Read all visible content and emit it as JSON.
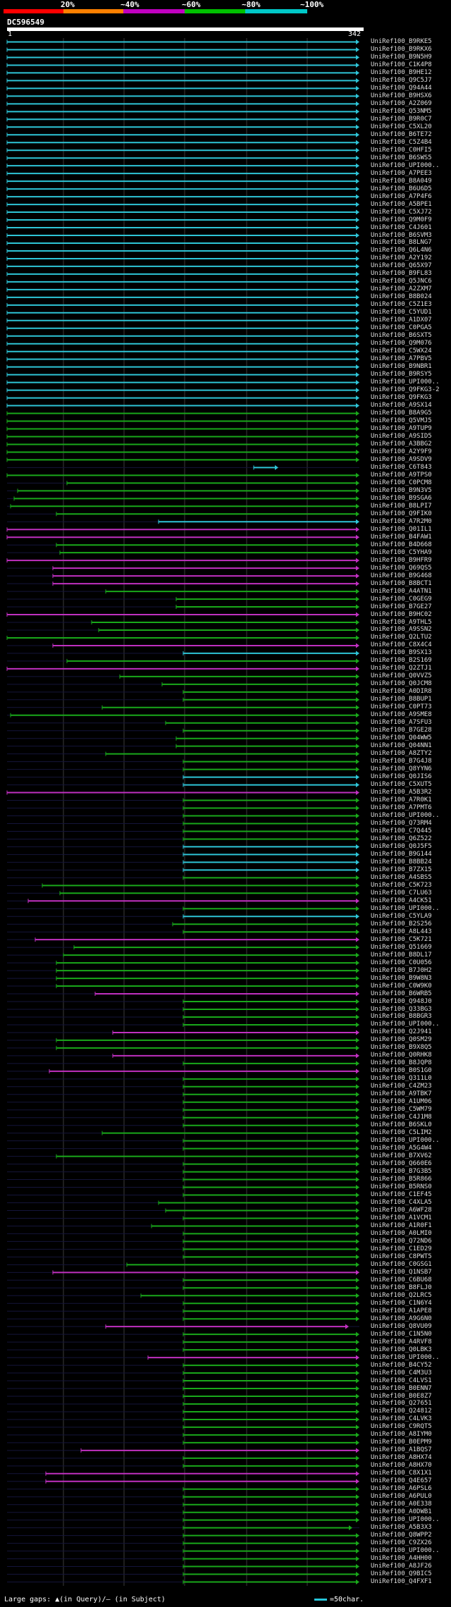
{
  "legend": [
    {
      "label": "20%",
      "color": "#ff0000"
    },
    {
      "label": "~40%",
      "color": "#ff8000"
    },
    {
      "label": "~60%",
      "color": "#c000c0"
    },
    {
      "label": "~80%",
      "color": "#00c000"
    },
    {
      "label": "~100%",
      "color": "#00c8c8"
    }
  ],
  "query": {
    "name": "DC596549",
    "start": "1",
    "end": "342"
  },
  "footer": "Large gaps: ▲(in Query)/— (in Subject)",
  "scale_label": "=50char.",
  "hits": [
    {
      "label": "UniRef100_B9RKE5",
      "c": "cyan",
      "s": 0,
      "e": 1
    },
    {
      "label": "UniRef100_B9RKX6",
      "c": "cyan",
      "s": 0,
      "e": 1
    },
    {
      "label": "UniRef100_B9N5H9",
      "c": "cyan",
      "s": 0,
      "e": 1
    },
    {
      "label": "UniRef100_C1K4P8",
      "c": "cyan",
      "s": 0,
      "e": 1
    },
    {
      "label": "UniRef100_B9HE12",
      "c": "cyan",
      "s": 0,
      "e": 1
    },
    {
      "label": "UniRef100_Q9C5J7",
      "c": "cyan",
      "s": 0,
      "e": 1
    },
    {
      "label": "UniRef100_Q94A44",
      "c": "cyan",
      "s": 0,
      "e": 1
    },
    {
      "label": "UniRef100_B9HSX6",
      "c": "cyan",
      "s": 0,
      "e": 1
    },
    {
      "label": "UniRef100_A2Z069",
      "c": "cyan",
      "s": 0,
      "e": 1
    },
    {
      "label": "UniRef100_Q53NM5",
      "c": "cyan",
      "s": 0,
      "e": 1
    },
    {
      "label": "UniRef100_B9R0C7",
      "c": "cyan",
      "s": 0,
      "e": 1
    },
    {
      "label": "UniRef100_C5XL20",
      "c": "cyan",
      "s": 0,
      "e": 1
    },
    {
      "label": "UniRef100_B6TE72",
      "c": "cyan",
      "s": 0,
      "e": 1
    },
    {
      "label": "UniRef100_C5Z4B4",
      "c": "cyan",
      "s": 0,
      "e": 1
    },
    {
      "label": "UniRef100_C0HFI5",
      "c": "cyan",
      "s": 0,
      "e": 1
    },
    {
      "label": "UniRef100_B6SWS5",
      "c": "cyan",
      "s": 0,
      "e": 1
    },
    {
      "label": "UniRef100_UPI000..",
      "c": "cyan",
      "s": 0,
      "e": 1
    },
    {
      "label": "UniRef100_A7PEE3",
      "c": "cyan",
      "s": 0,
      "e": 1
    },
    {
      "label": "UniRef100_B8A049",
      "c": "cyan",
      "s": 0,
      "e": 1
    },
    {
      "label": "UniRef100_B6U6D5",
      "c": "cyan",
      "s": 0,
      "e": 1
    },
    {
      "label": "UniRef100_A7P4F6",
      "c": "cyan",
      "s": 0,
      "e": 1
    },
    {
      "label": "UniRef100_A5BPE1",
      "c": "cyan",
      "s": 0,
      "e": 1
    },
    {
      "label": "UniRef100_C5XJ72",
      "c": "cyan",
      "s": 0,
      "e": 1
    },
    {
      "label": "UniRef100_Q9M0F9",
      "c": "cyan",
      "s": 0,
      "e": 1
    },
    {
      "label": "UniRef100_C4J601",
      "c": "cyan",
      "s": 0,
      "e": 1
    },
    {
      "label": "UniRef100_B6SVM3",
      "c": "cyan",
      "s": 0,
      "e": 1
    },
    {
      "label": "UniRef100_B8LNG7",
      "c": "cyan",
      "s": 0,
      "e": 1
    },
    {
      "label": "UniRef100_Q6L4N6",
      "c": "cyan",
      "s": 0,
      "e": 1
    },
    {
      "label": "UniRef100_A2Y192",
      "c": "cyan",
      "s": 0,
      "e": 1
    },
    {
      "label": "UniRef100_Q65X97",
      "c": "cyan",
      "s": 0,
      "e": 1
    },
    {
      "label": "UniRef100_B9FL83",
      "c": "cyan",
      "s": 0,
      "e": 1
    },
    {
      "label": "UniRef100_Q5JNC6",
      "c": "cyan",
      "s": 0,
      "e": 1
    },
    {
      "label": "UniRef100_A2ZXM7",
      "c": "cyan",
      "s": 0,
      "e": 1
    },
    {
      "label": "UniRef100_B8B024",
      "c": "cyan",
      "s": 0,
      "e": 1
    },
    {
      "label": "UniRef100_C5Z1E3",
      "c": "cyan",
      "s": 0,
      "e": 1
    },
    {
      "label": "UniRef100_C5YUD1",
      "c": "cyan",
      "s": 0,
      "e": 1
    },
    {
      "label": "UniRef100_A1DX07",
      "c": "cyan",
      "s": 0,
      "e": 1
    },
    {
      "label": "UniRef100_C0PGA5",
      "c": "cyan",
      "s": 0,
      "e": 1
    },
    {
      "label": "UniRef100_B6SXT5",
      "c": "cyan",
      "s": 0,
      "e": 1
    },
    {
      "label": "UniRef100_Q9M076",
      "c": "cyan",
      "s": 0,
      "e": 1
    },
    {
      "label": "UniRef100_C5WX24",
      "c": "cyan",
      "s": 0,
      "e": 1
    },
    {
      "label": "UniRef100_A7PBV5",
      "c": "cyan",
      "s": 0,
      "e": 1
    },
    {
      "label": "UniRef100_B9NBR1",
      "c": "cyan",
      "s": 0,
      "e": 1
    },
    {
      "label": "UniRef100_B9RSY5",
      "c": "cyan",
      "s": 0,
      "e": 1
    },
    {
      "label": "UniRef100_UPI000..",
      "c": "cyan",
      "s": 0,
      "e": 1
    },
    {
      "label": "UniRef100_Q9FKG3-2",
      "c": "cyan",
      "s": 0,
      "e": 1
    },
    {
      "label": "UniRef100_Q9FKG3",
      "c": "cyan",
      "s": 0,
      "e": 1
    },
    {
      "label": "UniRef100_A9SX14",
      "c": "cyan",
      "s": 0,
      "e": 1
    },
    {
      "label": "UniRef100_B8A9G5",
      "c": "green",
      "s": 0,
      "e": 1
    },
    {
      "label": "UniRef100_Q5VMJ5",
      "c": "green",
      "s": 0,
      "e": 1
    },
    {
      "label": "UniRef100_A9TUP9",
      "c": "green",
      "s": 0,
      "e": 1
    },
    {
      "label": "UniRef100_A9SID5",
      "c": "green",
      "s": 0,
      "e": 1
    },
    {
      "label": "UniRef100_A3BBG2",
      "c": "green",
      "s": 0,
      "e": 1
    },
    {
      "label": "UniRef100_A2Y9F9",
      "c": "green",
      "s": 0,
      "e": 1
    },
    {
      "label": "UniRef100_A9SDV9",
      "c": "green",
      "s": 0,
      "e": 1
    },
    {
      "label": "UniRef100_C6T843",
      "c": "cyan",
      "s": 0.7,
      "e": 0.77
    },
    {
      "label": "UniRef100_A9TPS0",
      "c": "green",
      "s": 0,
      "e": 1
    },
    {
      "label": "UniRef100_C0PCM8",
      "c": "green",
      "s": 0.17,
      "e": 1
    },
    {
      "label": "UniRef100_B9N3V5",
      "c": "green",
      "s": 0.03,
      "e": 1
    },
    {
      "label": "UniRef100_B9SGA6",
      "c": "green",
      "s": 0.02,
      "e": 1
    },
    {
      "label": "UniRef100_B8LPI7",
      "c": "green",
      "s": 0.01,
      "e": 1
    },
    {
      "label": "UniRef100_Q9FIK0",
      "c": "green",
      "s": 0.14,
      "e": 1
    },
    {
      "label": "UniRef100_A7R2M0",
      "c": "cyan",
      "s": 0.43,
      "e": 1
    },
    {
      "label": "UniRef100_Q01IL1",
      "c": "magenta",
      "s": 0,
      "e": 1
    },
    {
      "label": "UniRef100_B4FAW1",
      "c": "magenta",
      "s": 0,
      "e": 1
    },
    {
      "label": "UniRef100_B4D668",
      "c": "green",
      "s": 0.14,
      "e": 1
    },
    {
      "label": "UniRef100_C5YHA9",
      "c": "green",
      "s": 0.15,
      "e": 1
    },
    {
      "label": "UniRef100_B9HFR9",
      "c": "magenta",
      "s": 0,
      "e": 1
    },
    {
      "label": "UniRef100_Q69QS5",
      "c": "magenta",
      "s": 0.13,
      "e": 1
    },
    {
      "label": "UniRef100_B9G468",
      "c": "magenta",
      "s": 0.13,
      "e": 1
    },
    {
      "label": "UniRef100_B8BCT1",
      "c": "magenta",
      "s": 0.13,
      "e": 1
    },
    {
      "label": "UniRef100_A4ATN1",
      "c": "green",
      "s": 0.28,
      "e": 1
    },
    {
      "label": "UniRef100_C0GEG9",
      "c": "green",
      "s": 0.48,
      "e": 1
    },
    {
      "label": "UniRef100_B7GE27",
      "c": "green",
      "s": 0.48,
      "e": 1
    },
    {
      "label": "UniRef100_B9HC02",
      "c": "magenta",
      "s": 0,
      "e": 1
    },
    {
      "label": "UniRef100_A9THL5",
      "c": "green",
      "s": 0.24,
      "e": 1
    },
    {
      "label": "UniRef100_A9SSN2",
      "c": "green",
      "s": 0.26,
      "e": 1
    },
    {
      "label": "UniRef100_Q2LTU2",
      "c": "green",
      "s": 0,
      "e": 1
    },
    {
      "label": "UniRef100_C8X4C4",
      "c": "magenta",
      "s": 0.13,
      "e": 1
    },
    {
      "label": "UniRef100_B9SX13",
      "c": "cyan",
      "s": 0.5,
      "e": 1
    },
    {
      "label": "UniRef100_B2S169",
      "c": "green",
      "s": 0.17,
      "e": 1
    },
    {
      "label": "UniRef100_Q2ZTJ1",
      "c": "magenta",
      "s": 0,
      "e": 1
    },
    {
      "label": "UniRef100_Q0VVZ5",
      "c": "green",
      "s": 0.32,
      "e": 1
    },
    {
      "label": "UniRef100_Q0JCM8",
      "c": "green",
      "s": 0.44,
      "e": 1
    },
    {
      "label": "UniRef100_A0DIR8",
      "c": "green",
      "s": 0.5,
      "e": 1
    },
    {
      "label": "UniRef100_B8BUP1",
      "c": "green",
      "s": 0.5,
      "e": 1
    },
    {
      "label": "UniRef100_C0PT73",
      "c": "green",
      "s": 0.27,
      "e": 1
    },
    {
      "label": "UniRef100_A9SME8",
      "c": "green",
      "s": 0.01,
      "e": 1
    },
    {
      "label": "UniRef100_A7SFU3",
      "c": "green",
      "s": 0.45,
      "e": 1
    },
    {
      "label": "UniRef100_B7GE28",
      "c": "green",
      "s": 0.5,
      "e": 1
    },
    {
      "label": "UniRef100_Q04WW5",
      "c": "green",
      "s": 0.48,
      "e": 1
    },
    {
      "label": "UniRef100_Q04NN1",
      "c": "green",
      "s": 0.48,
      "e": 1
    },
    {
      "label": "UniRef100_A8ZTY2",
      "c": "green",
      "s": 0.28,
      "e": 1
    },
    {
      "label": "UniRef100_B7G4J8",
      "c": "green",
      "s": 0.5,
      "e": 1
    },
    {
      "label": "UniRef100_Q8YYN6",
      "c": "green",
      "s": 0.5,
      "e": 1
    },
    {
      "label": "UniRef100_Q0JIS6",
      "c": "cyan",
      "s": 0.5,
      "e": 1
    },
    {
      "label": "UniRef100_C5XUT5",
      "c": "cyan",
      "s": 0.5,
      "e": 1
    },
    {
      "label": "UniRef100_A5B3R2",
      "c": "magenta",
      "s": 0,
      "e": 1
    },
    {
      "label": "UniRef100_A7R0K1",
      "c": "green",
      "s": 0.5,
      "e": 1
    },
    {
      "label": "UniRef100_A7PMT6",
      "c": "green",
      "s": 0.5,
      "e": 1
    },
    {
      "label": "UniRef100_UPI000..",
      "c": "green",
      "s": 0.5,
      "e": 1
    },
    {
      "label": "UniRef100_Q73RM4",
      "c": "green",
      "s": 0.5,
      "e": 1
    },
    {
      "label": "UniRef100_C7Q445",
      "c": "green",
      "s": 0.5,
      "e": 1
    },
    {
      "label": "UniRef100_Q6Z522",
      "c": "green",
      "s": 0.5,
      "e": 1
    },
    {
      "label": "UniRef100_Q0J5F5",
      "c": "cyan",
      "s": 0.5,
      "e": 1
    },
    {
      "label": "UniRef100_B9G144",
      "c": "cyan",
      "s": 0.5,
      "e": 1
    },
    {
      "label": "UniRef100_B8BB24",
      "c": "cyan",
      "s": 0.5,
      "e": 1
    },
    {
      "label": "UniRef100_B7ZX15",
      "c": "cyan",
      "s": 0.5,
      "e": 1
    },
    {
      "label": "UniRef100_A4SBS5",
      "c": "green",
      "s": 0.5,
      "e": 1
    },
    {
      "label": "UniRef100_C5K723",
      "c": "green",
      "s": 0.1,
      "e": 1
    },
    {
      "label": "UniRef100_C7LU63",
      "c": "green",
      "s": 0.15,
      "e": 1
    },
    {
      "label": "UniRef100_A4CK51",
      "c": "magenta",
      "s": 0.06,
      "e": 1
    },
    {
      "label": "UniRef100_UPI000..",
      "c": "green",
      "s": 0.5,
      "e": 1
    },
    {
      "label": "UniRef100_C5YLA9",
      "c": "cyan",
      "s": 0.5,
      "e": 1
    },
    {
      "label": "UniRef100_B2S256",
      "c": "green",
      "s": 0.47,
      "e": 1
    },
    {
      "label": "UniRef100_A8L443",
      "c": "green",
      "s": 0.5,
      "e": 1
    },
    {
      "label": "UniRef100_C5K721",
      "c": "magenta",
      "s": 0.08,
      "e": 1
    },
    {
      "label": "UniRef100_Q51669",
      "c": "green",
      "s": 0.19,
      "e": 1
    },
    {
      "label": "UniRef100_B8DL17",
      "c": "green",
      "s": 0.16,
      "e": 1
    },
    {
      "label": "UniRef100_C0U056",
      "c": "green",
      "s": 0.14,
      "e": 1
    },
    {
      "label": "UniRef100_B7J0H2",
      "c": "green",
      "s": 0.14,
      "e": 1
    },
    {
      "label": "UniRef100_B9W8N3",
      "c": "green",
      "s": 0.14,
      "e": 1
    },
    {
      "label": "UniRef100_C0W9K0",
      "c": "green",
      "s": 0.14,
      "e": 1
    },
    {
      "label": "UniRef100_B6WRB5",
      "c": "magenta",
      "s": 0.25,
      "e": 1
    },
    {
      "label": "UniRef100_Q948J0",
      "c": "green",
      "s": 0.5,
      "e": 1
    },
    {
      "label": "UniRef100_Q33BG3",
      "c": "green",
      "s": 0.5,
      "e": 1
    },
    {
      "label": "UniRef100_B8BGR3",
      "c": "green",
      "s": 0.5,
      "e": 1
    },
    {
      "label": "UniRef100_UPI000..",
      "c": "green",
      "s": 0.5,
      "e": 1
    },
    {
      "label": "UniRef100_Q2J941",
      "c": "magenta",
      "s": 0.3,
      "e": 1
    },
    {
      "label": "UniRef100_Q0SM29",
      "c": "green",
      "s": 0.14,
      "e": 1
    },
    {
      "label": "UniRef100_B9X8Q5",
      "c": "green",
      "s": 0.14,
      "e": 1
    },
    {
      "label": "UniRef100_Q0RHK8",
      "c": "magenta",
      "s": 0.3,
      "e": 1
    },
    {
      "label": "UniRef100_B8JQP8",
      "c": "green",
      "s": 0.5,
      "e": 1
    },
    {
      "label": "UniRef100_B0S1G0",
      "c": "magenta",
      "s": 0.12,
      "e": 1
    },
    {
      "label": "UniRef100_Q311L0",
      "c": "green",
      "s": 0.5,
      "e": 1
    },
    {
      "label": "UniRef100_C4ZM23",
      "c": "green",
      "s": 0.5,
      "e": 1
    },
    {
      "label": "UniRef100_A9TBK7",
      "c": "green",
      "s": 0.5,
      "e": 1
    },
    {
      "label": "UniRef100_A1UM06",
      "c": "green",
      "s": 0.5,
      "e": 1
    },
    {
      "label": "UniRef100_C5WM79",
      "c": "green",
      "s": 0.5,
      "e": 1
    },
    {
      "label": "UniRef100_C4J1M8",
      "c": "green",
      "s": 0.5,
      "e": 1
    },
    {
      "label": "UniRef100_B6SKL0",
      "c": "green",
      "s": 0.5,
      "e": 1
    },
    {
      "label": "UniRef100_C5LIM2",
      "c": "green",
      "s": 0.27,
      "e": 1
    },
    {
      "label": "UniRef100_UPI000..",
      "c": "green",
      "s": 0.5,
      "e": 1
    },
    {
      "label": "UniRef100_A5G4W4",
      "c": "green",
      "s": 0.5,
      "e": 1
    },
    {
      "label": "UniRef100_B7XV62",
      "c": "green",
      "s": 0.14,
      "e": 1
    },
    {
      "label": "UniRef100_Q660E6",
      "c": "green",
      "s": 0.5,
      "e": 1
    },
    {
      "label": "UniRef100_B7G3B5",
      "c": "green",
      "s": 0.5,
      "e": 1
    },
    {
      "label": "UniRef100_B5R866",
      "c": "green",
      "s": 0.5,
      "e": 1
    },
    {
      "label": "UniRef100_B5RNS0",
      "c": "green",
      "s": 0.5,
      "e": 1
    },
    {
      "label": "UniRef100_C1EF45",
      "c": "green",
      "s": 0.5,
      "e": 1
    },
    {
      "label": "UniRef100_C4XLA5",
      "c": "green",
      "s": 0.43,
      "e": 1
    },
    {
      "label": "UniRef100_A6WF28",
      "c": "green",
      "s": 0.45,
      "e": 1
    },
    {
      "label": "UniRef100_A1VCM1",
      "c": "green",
      "s": 0.5,
      "e": 1
    },
    {
      "label": "UniRef100_A1R0F1",
      "c": "green",
      "s": 0.41,
      "e": 1
    },
    {
      "label": "UniRef100_A0LMI0",
      "c": "green",
      "s": 0.5,
      "e": 1
    },
    {
      "label": "UniRef100_Q72ND6",
      "c": "green",
      "s": 0.5,
      "e": 1
    },
    {
      "label": "UniRef100_C1ED29",
      "c": "green",
      "s": 0.5,
      "e": 1
    },
    {
      "label": "UniRef100_C8PWT5",
      "c": "green",
      "s": 0.5,
      "e": 1
    },
    {
      "label": "UniRef100_C0GSG1",
      "c": "green",
      "s": 0.34,
      "e": 1
    },
    {
      "label": "UniRef100_Q1NSB7",
      "c": "magenta",
      "s": 0.13,
      "e": 1
    },
    {
      "label": "UniRef100_C6BU68",
      "c": "green",
      "s": 0.5,
      "e": 1
    },
    {
      "label": "UniRef100_B8FLJ0",
      "c": "green",
      "s": 0.5,
      "e": 1
    },
    {
      "label": "UniRef100_Q2LRC5",
      "c": "green",
      "s": 0.38,
      "e": 1
    },
    {
      "label": "UniRef100_C1N6Y4",
      "c": "green",
      "s": 0.5,
      "e": 1
    },
    {
      "label": "UniRef100_A1APE8",
      "c": "green",
      "s": 0.5,
      "e": 1
    },
    {
      "label": "UniRef100_A9G6N0",
      "c": "green",
      "s": 0.5,
      "e": 1
    },
    {
      "label": "UniRef100_Q8VU09",
      "c": "magenta",
      "s": 0.28,
      "e": 0.97
    },
    {
      "label": "UniRef100_C1N5N0",
      "c": "green",
      "s": 0.5,
      "e": 1
    },
    {
      "label": "UniRef100_A4RVF8",
      "c": "green",
      "s": 0.5,
      "e": 1
    },
    {
      "label": "UniRef100_Q0LBK3",
      "c": "green",
      "s": 0.5,
      "e": 1
    },
    {
      "label": "UniRef100_UPI000..",
      "c": "magenta",
      "s": 0.4,
      "e": 1
    },
    {
      "label": "UniRef100_B4CY52",
      "c": "green",
      "s": 0.5,
      "e": 1
    },
    {
      "label": "UniRef100_C4M3U3",
      "c": "green",
      "s": 0.5,
      "e": 1
    },
    {
      "label": "UniRef100_C4LVS1",
      "c": "green",
      "s": 0.5,
      "e": 1
    },
    {
      "label": "UniRef100_B0ENN7",
      "c": "green",
      "s": 0.5,
      "e": 1
    },
    {
      "label": "UniRef100_B0E8Z7",
      "c": "green",
      "s": 0.5,
      "e": 1
    },
    {
      "label": "UniRef100_Q27651",
      "c": "green",
      "s": 0.5,
      "e": 1
    },
    {
      "label": "UniRef100_Q24812",
      "c": "green",
      "s": 0.5,
      "e": 1
    },
    {
      "label": "UniRef100_C4LVK3",
      "c": "green",
      "s": 0.5,
      "e": 1
    },
    {
      "label": "UniRef100_C9RQT5",
      "c": "green",
      "s": 0.5,
      "e": 1
    },
    {
      "label": "UniRef100_A8IYM0",
      "c": "green",
      "s": 0.5,
      "e": 1
    },
    {
      "label": "UniRef100_B0EPM9",
      "c": "green",
      "s": 0.5,
      "e": 1
    },
    {
      "label": "UniRef100_A1BQS7",
      "c": "magenta",
      "s": 0.21,
      "e": 1
    },
    {
      "label": "UniRef100_A8HX74",
      "c": "green",
      "s": 0.5,
      "e": 1
    },
    {
      "label": "UniRef100_A8HX70",
      "c": "green",
      "s": 0.5,
      "e": 1
    },
    {
      "label": "UniRef100_C8X1X1",
      "c": "magenta",
      "s": 0.11,
      "e": 1
    },
    {
      "label": "UniRef100_Q4E657",
      "c": "magenta",
      "s": 0.11,
      "e": 1
    },
    {
      "label": "UniRef100_A6PSL6",
      "c": "green",
      "s": 0.5,
      "e": 1
    },
    {
      "label": "UniRef100_A6PUL0",
      "c": "green",
      "s": 0.5,
      "e": 1
    },
    {
      "label": "UniRef100_A0E338",
      "c": "green",
      "s": 0.5,
      "e": 1
    },
    {
      "label": "UniRef100_A0DWB1",
      "c": "green",
      "s": 0.5,
      "e": 1
    },
    {
      "label": "UniRef100_UPI000..",
      "c": "green",
      "s": 0.5,
      "e": 1
    },
    {
      "label": "UniRef100_A5B3X3",
      "c": "green",
      "s": 0.5,
      "e": 0.98
    },
    {
      "label": "UniRef100_Q8WPP2",
      "c": "green",
      "s": 0.5,
      "e": 1
    },
    {
      "label": "UniRef100_C9ZX26",
      "c": "green",
      "s": 0.5,
      "e": 1
    },
    {
      "label": "UniRef100_UPI000..",
      "c": "green",
      "s": 0.5,
      "e": 1
    },
    {
      "label": "UniRef100_A4HH00",
      "c": "green",
      "s": 0.5,
      "e": 1
    },
    {
      "label": "UniRef100_A8JF26",
      "c": "green",
      "s": 0.5,
      "e": 1
    },
    {
      "label": "UniRef100_Q9BIC5",
      "c": "green",
      "s": 0.5,
      "e": 1
    },
    {
      "label": "UniRef100_Q4FXF1",
      "c": "green",
      "s": 0.5,
      "e": 1
    }
  ]
}
